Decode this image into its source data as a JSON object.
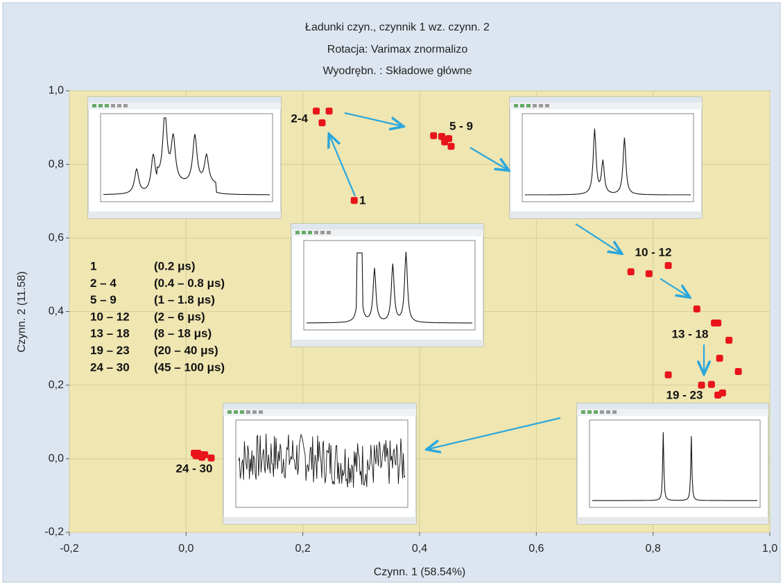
{
  "chart_data": {
    "type": "scatter",
    "title": [
      "Ładunki czyn., czynnik  1 wz. czynn. 2",
      "Rotacja: Varimax znormalizo",
      "Wyodrębn. : Składowe główne"
    ],
    "x_label": "Czynn. 1 (58.54%)",
    "y_label": "Czynn. 2 (11.58)",
    "color": "#e8141a",
    "x": [
      0.288,
      0.223,
      0.245,
      0.233,
      0.424,
      0.438,
      0.45,
      0.443,
      0.454,
      0.762,
      0.793,
      0.826,
      0.875,
      0.905,
      0.911,
      0.93,
      0.914,
      0.946,
      0.826,
      0.883,
      0.9,
      0.919,
      0.911,
      0.014,
      0.02,
      0.025,
      0.032,
      0.043,
      0.017,
      0.027
    ],
    "values": [
      0.702,
      0.945,
      0.945,
      0.913,
      0.878,
      0.876,
      0.87,
      0.861,
      0.849,
      0.508,
      0.503,
      0.525,
      0.407,
      0.369,
      0.369,
      0.322,
      0.273,
      0.237,
      0.228,
      0.2,
      0.202,
      0.179,
      0.173,
      0.015,
      0.015,
      0.011,
      0.011,
      0.002,
      0.008,
      0.004
    ],
    "xlim": [
      -0.2,
      1.0
    ],
    "ylim": [
      -0.2,
      1.0
    ],
    "xticks": [
      {
        "value": -0.2,
        "label": "-0,2"
      },
      {
        "value": 0,
        "label": "0,0"
      },
      {
        "value": 0.2,
        "label": "0,2"
      },
      {
        "value": 0.4,
        "label": "0,4"
      },
      {
        "value": 0.6,
        "label": "0,6"
      },
      {
        "value": 0.8,
        "label": "0,8"
      },
      {
        "value": 1.0,
        "label": "1,0"
      }
    ],
    "yticks": [
      {
        "value": -0.2,
        "label": "-0,2"
      },
      {
        "value": 0,
        "label": "0,0"
      },
      {
        "value": 0.2,
        "label": "0,2"
      },
      {
        "value": 0.4,
        "label": "0,4"
      },
      {
        "value": 0.6,
        "label": "0,6"
      },
      {
        "value": 0.8,
        "label": "0,8"
      },
      {
        "value": 1.0,
        "label": "1,0"
      }
    ],
    "grid": true,
    "annotations": [
      "1",
      "2-4",
      "5 - 9",
      "10 - 12",
      "13 - 18",
      "19 - 23",
      "24 - 30"
    ],
    "key": [
      [
        "1",
        "(0.2 μs)"
      ],
      [
        "2 – 4",
        "(0.4 – 0.8 μs)"
      ],
      [
        "5 – 9",
        "(1 – 1.8 μs)"
      ],
      [
        "10 – 12",
        "(2 – 6 μs)"
      ],
      [
        "13 – 18",
        "(8 – 18 μs)"
      ],
      [
        "19 – 23",
        "(20 – 40 μs)"
      ],
      [
        "24 – 30",
        "(45 – 100 μs)"
      ]
    ]
  }
}
